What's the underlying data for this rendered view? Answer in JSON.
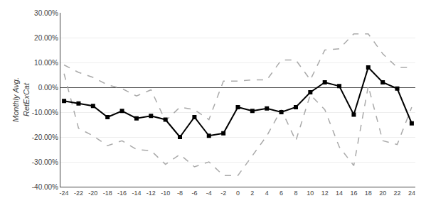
{
  "chart_data": {
    "type": "line",
    "ylabel": "Monthly Avg.\nRetExCat",
    "x": [
      -24,
      -22,
      -20,
      -18,
      -16,
      -14,
      -12,
      -10,
      -8,
      -6,
      -4,
      -2,
      0,
      2,
      4,
      6,
      8,
      10,
      12,
      14,
      16,
      18,
      20,
      22,
      24
    ],
    "series": [
      {
        "color": "#aaaaaa",
        "line_style": "dashed",
        "values": [
          0.09,
          0.06,
          0.04,
          0.01,
          -0.005,
          -0.035,
          -0.01,
          -0.135,
          -0.08,
          -0.09,
          -0.13,
          0.025,
          0.025,
          0.03,
          0.03,
          0.11,
          0.11,
          0.03,
          0.15,
          0.155,
          0.215,
          0.215,
          0.135,
          0.08,
          0.08
        ]
      },
      {
        "color": "#aaaaaa",
        "line_style": "dashed",
        "values": [
          0.055,
          -0.165,
          -0.195,
          -0.235,
          -0.215,
          -0.25,
          -0.255,
          -0.31,
          -0.27,
          -0.32,
          -0.3,
          -0.355,
          -0.355,
          -0.275,
          -0.195,
          -0.09,
          -0.215,
          -0.03,
          -0.09,
          -0.24,
          -0.315,
          0.005,
          -0.215,
          -0.23,
          -0.08
        ]
      },
      {
        "color": "#000000",
        "line_style": "solid",
        "marker": "square",
        "values": [
          -0.055,
          -0.065,
          -0.075,
          -0.12,
          -0.095,
          -0.125,
          -0.115,
          -0.13,
          -0.2,
          -0.12,
          -0.195,
          -0.185,
          -0.08,
          -0.095,
          -0.085,
          -0.1,
          -0.08,
          -0.02,
          0.02,
          0.005,
          -0.11,
          0.08,
          0.02,
          -0.005,
          -0.145
        ]
      }
    ],
    "xlim": [
      -24.5,
      24.5
    ],
    "xticks": [
      -24,
      -22,
      -20,
      -18,
      -16,
      -14,
      -12,
      -10,
      -8,
      -6,
      -4,
      -2,
      0,
      2,
      4,
      6,
      8,
      10,
      12,
      14,
      16,
      18,
      20,
      22,
      24
    ],
    "ylim": [
      -0.4,
      0.3
    ],
    "yticks": [
      {
        "value": -0.4,
        "label": "-40.00%"
      },
      {
        "value": -0.3,
        "label": "-30.00%"
      },
      {
        "value": -0.2,
        "label": "-20.00%"
      },
      {
        "value": -0.1,
        "label": "-10.00%"
      },
      {
        "value": 0.0,
        "label": "0.00%"
      },
      {
        "value": 0.1,
        "label": "10.00%"
      },
      {
        "value": 0.2,
        "label": "20.00%"
      },
      {
        "value": 0.3,
        "label": "30.00%"
      }
    ],
    "grid": true
  }
}
